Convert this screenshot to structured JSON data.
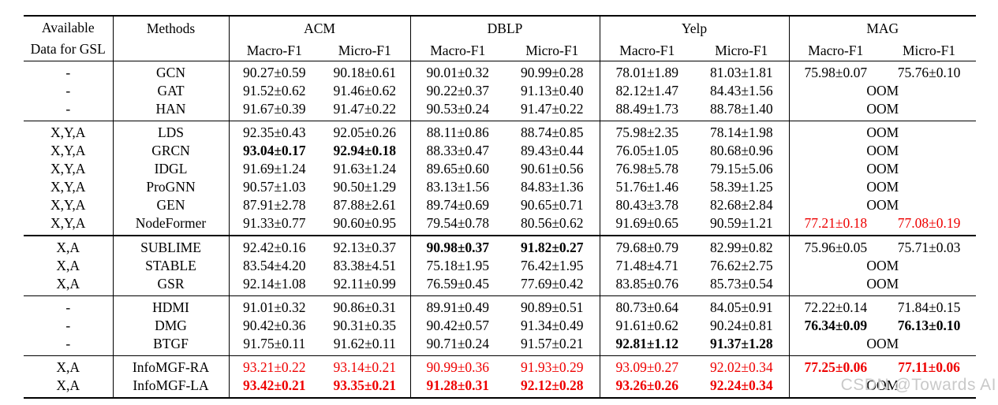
{
  "table": {
    "header": {
      "available_line1": "Available",
      "available_line2": "Data for GSL",
      "methods": "Methods",
      "datasets": [
        "ACM",
        "DBLP",
        "Yelp",
        "MAG"
      ],
      "macro_label": "Macro-F1",
      "micro_label": "Micro-F1"
    },
    "groups": [
      {
        "rows": [
          {
            "avail": "-",
            "method": "GCN",
            "cells": [
              {
                "t": "90.27±0.59"
              },
              {
                "t": "90.18±0.61"
              },
              {
                "t": "90.01±0.32"
              },
              {
                "t": "90.99±0.28"
              },
              {
                "t": "78.01±1.89"
              },
              {
                "t": "81.03±1.81"
              },
              {
                "t": "75.98±0.07"
              },
              {
                "t": "75.76±0.10"
              }
            ]
          },
          {
            "avail": "-",
            "method": "GAT",
            "cells": [
              {
                "t": "91.52±0.62"
              },
              {
                "t": "91.46±0.62"
              },
              {
                "t": "90.22±0.37"
              },
              {
                "t": "91.13±0.40"
              },
              {
                "t": "82.12±1.47"
              },
              {
                "t": "84.43±1.56"
              },
              {
                "t": "OOM",
                "span": 2
              }
            ]
          },
          {
            "avail": "-",
            "method": "HAN",
            "cells": [
              {
                "t": "91.67±0.39"
              },
              {
                "t": "91.47±0.22"
              },
              {
                "t": "90.53±0.24"
              },
              {
                "t": "91.47±0.22"
              },
              {
                "t": "88.49±1.73"
              },
              {
                "t": "88.78±1.40"
              },
              {
                "t": "OOM",
                "span": 2
              }
            ]
          }
        ]
      },
      {
        "rows": [
          {
            "avail": "X,Y,A",
            "method": "LDS",
            "cells": [
              {
                "t": "92.35±0.43"
              },
              {
                "t": "92.05±0.26"
              },
              {
                "t": "88.11±0.86"
              },
              {
                "t": "88.74±0.85"
              },
              {
                "t": "75.98±2.35"
              },
              {
                "t": "78.14±1.98"
              },
              {
                "t": "OOM",
                "span": 2
              }
            ]
          },
          {
            "avail": "X,Y,A",
            "method": "GRCN",
            "cells": [
              {
                "t": "93.04±0.17",
                "b": 1
              },
              {
                "t": "92.94±0.18",
                "b": 1
              },
              {
                "t": "88.33±0.47"
              },
              {
                "t": "89.43±0.44"
              },
              {
                "t": "76.05±1.05"
              },
              {
                "t": "80.68±0.96"
              },
              {
                "t": "OOM",
                "span": 2
              }
            ]
          },
          {
            "avail": "X,Y,A",
            "method": "IDGL",
            "cells": [
              {
                "t": "91.69±1.24"
              },
              {
                "t": "91.63±1.24"
              },
              {
                "t": "89.65±0.60"
              },
              {
                "t": "90.61±0.56"
              },
              {
                "t": "76.98±5.78"
              },
              {
                "t": "79.15±5.06"
              },
              {
                "t": "OOM",
                "span": 2
              }
            ]
          },
          {
            "avail": "X,Y,A",
            "method": "ProGNN",
            "cells": [
              {
                "t": "90.57±1.03"
              },
              {
                "t": "90.50±1.29"
              },
              {
                "t": "83.13±1.56"
              },
              {
                "t": "84.83±1.36"
              },
              {
                "t": "51.76±1.46"
              },
              {
                "t": "58.39±1.25"
              },
              {
                "t": "OOM",
                "span": 2
              }
            ]
          },
          {
            "avail": "X,Y,A",
            "method": "GEN",
            "cells": [
              {
                "t": "87.91±2.78"
              },
              {
                "t": "87.88±2.61"
              },
              {
                "t": "89.74±0.69"
              },
              {
                "t": "90.65±0.71"
              },
              {
                "t": "80.43±3.78"
              },
              {
                "t": "82.68±2.84"
              },
              {
                "t": "OOM",
                "span": 2
              }
            ]
          },
          {
            "avail": "X,Y,A",
            "method": "NodeFormer",
            "cells": [
              {
                "t": "91.33±0.77"
              },
              {
                "t": "90.60±0.95"
              },
              {
                "t": "79.54±0.78"
              },
              {
                "t": "80.56±0.62"
              },
              {
                "t": "91.69±0.65"
              },
              {
                "t": "90.59±1.21"
              },
              {
                "t": "77.21±0.18",
                "r": 1
              },
              {
                "t": "77.08±0.19",
                "r": 1
              }
            ]
          }
        ]
      },
      {
        "thick_rule": true,
        "rows": [
          {
            "avail": "X,A",
            "method": "SUBLIME",
            "cells": [
              {
                "t": "92.42±0.16"
              },
              {
                "t": "92.13±0.37"
              },
              {
                "t": "90.98±0.37",
                "b": 1
              },
              {
                "t": "91.82±0.27",
                "b": 1
              },
              {
                "t": "79.68±0.79"
              },
              {
                "t": "82.99±0.82"
              },
              {
                "t": "75.96±0.05"
              },
              {
                "t": "75.71±0.03"
              }
            ]
          },
          {
            "avail": "X,A",
            "method": "STABLE",
            "cells": [
              {
                "t": "83.54±4.20"
              },
              {
                "t": "83.38±4.51"
              },
              {
                "t": "75.18±1.95"
              },
              {
                "t": "76.42±1.95"
              },
              {
                "t": "71.48±4.71"
              },
              {
                "t": "76.62±2.75"
              },
              {
                "t": "OOM",
                "span": 2
              }
            ]
          },
          {
            "avail": "X,A",
            "method": "GSR",
            "cells": [
              {
                "t": "92.14±1.08"
              },
              {
                "t": "92.11±0.99"
              },
              {
                "t": "76.59±0.45"
              },
              {
                "t": "77.69±0.42"
              },
              {
                "t": "83.85±0.76"
              },
              {
                "t": "85.73±0.54"
              },
              {
                "t": "OOM",
                "span": 2
              }
            ]
          }
        ]
      },
      {
        "rows": [
          {
            "avail": "-",
            "method": "HDMI",
            "cells": [
              {
                "t": "91.01±0.32"
              },
              {
                "t": "90.86±0.31"
              },
              {
                "t": "89.91±0.49"
              },
              {
                "t": "90.89±0.51"
              },
              {
                "t": "80.73±0.64"
              },
              {
                "t": "84.05±0.91"
              },
              {
                "t": "72.22±0.14"
              },
              {
                "t": "71.84±0.15"
              }
            ]
          },
          {
            "avail": "-",
            "method": "DMG",
            "cells": [
              {
                "t": "90.42±0.36"
              },
              {
                "t": "90.31±0.35"
              },
              {
                "t": "90.42±0.57"
              },
              {
                "t": "91.34±0.49"
              },
              {
                "t": "91.61±0.62"
              },
              {
                "t": "90.24±0.81"
              },
              {
                "t": "76.34±0.09",
                "b": 1
              },
              {
                "t": "76.13±0.10",
                "b": 1
              }
            ]
          },
          {
            "avail": "-",
            "method": "BTGF",
            "cells": [
              {
                "t": "91.75±0.11"
              },
              {
                "t": "91.62±0.11"
              },
              {
                "t": "90.71±0.24"
              },
              {
                "t": "91.57±0.21"
              },
              {
                "t": "92.81±1.12",
                "b": 1
              },
              {
                "t": "91.37±1.28",
                "b": 1
              },
              {
                "t": "OOM",
                "span": 2
              }
            ]
          }
        ]
      },
      {
        "rows": [
          {
            "avail": "X,A",
            "method": "InfoMGF-RA",
            "cells": [
              {
                "t": "93.21±0.22",
                "r": 1
              },
              {
                "t": "93.14±0.21",
                "r": 1
              },
              {
                "t": "90.99±0.36",
                "r": 1
              },
              {
                "t": "91.93±0.29",
                "r": 1
              },
              {
                "t": "93.09±0.27",
                "r": 1
              },
              {
                "t": "92.02±0.34",
                "r": 1
              },
              {
                "t": "77.25±0.06",
                "r": 1,
                "b": 1
              },
              {
                "t": "77.11±0.06",
                "r": 1,
                "b": 1
              }
            ]
          },
          {
            "avail": "X,A",
            "method": "InfoMGF-LA",
            "cells": [
              {
                "t": "93.42±0.21",
                "r": 1,
                "b": 1
              },
              {
                "t": "93.35±0.21",
                "r": 1,
                "b": 1
              },
              {
                "t": "91.28±0.31",
                "r": 1,
                "b": 1
              },
              {
                "t": "92.12±0.28",
                "r": 1,
                "b": 1
              },
              {
                "t": "93.26±0.26",
                "r": 1,
                "b": 1
              },
              {
                "t": "92.24±0.34",
                "r": 1,
                "b": 1
              },
              {
                "t": "OOM",
                "span": 2
              }
            ]
          }
        ]
      }
    ]
  },
  "watermark": {
    "text": "CSDN @Towards AI"
  },
  "colors": {
    "highlight_red": "#ee0000",
    "rule_black": "#000000",
    "watermark_gray": "#c9c9c9"
  }
}
